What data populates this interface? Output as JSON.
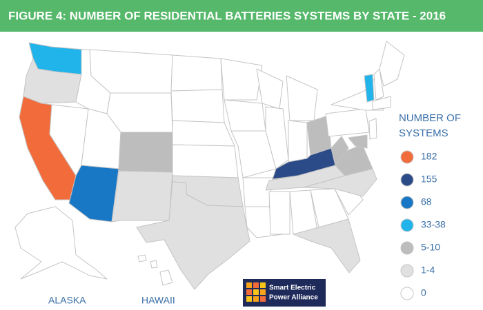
{
  "header": {
    "title": "FIGURE 4: NUMBER OF RESIDENTIAL BATTERIES SYSTEMS BY STATE - 2016"
  },
  "legend": {
    "title_lines": [
      "NUMBER OF",
      "SYSTEMS"
    ],
    "items": [
      {
        "label": "182",
        "color": "#f26b3a"
      },
      {
        "label": "155",
        "color": "#2b4a88"
      },
      {
        "label": "68",
        "color": "#1878c5"
      },
      {
        "label": "33-38",
        "color": "#21b4ea"
      },
      {
        "label": "5-10",
        "color": "#bdbdbd"
      },
      {
        "label": "1-4",
        "color": "#e0e0e0"
      },
      {
        "label": "0",
        "color": "#ffffff"
      }
    ]
  },
  "map": {
    "labels": [
      "ALASKA",
      "HAWAII"
    ]
  },
  "logo": {
    "lines": [
      "Smart Electric",
      "Power Alliance"
    ]
  }
}
